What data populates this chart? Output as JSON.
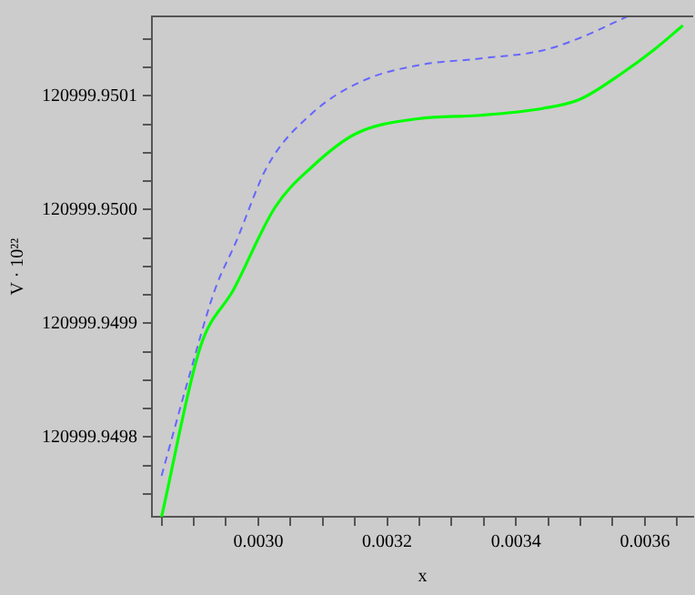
{
  "chart_data": {
    "type": "line",
    "xlabel": "x",
    "ylabel": "V · 10²²",
    "grid": false,
    "legend": false,
    "marker": "none",
    "xlim": [
      0.002835,
      0.003675
    ],
    "xticks": [
      {
        "value": 0.00285,
        "label": null
      },
      {
        "value": 0.0029,
        "label": null
      },
      {
        "value": 0.00295,
        "label": null
      },
      {
        "value": 0.003,
        "label": "0.0030"
      },
      {
        "value": 0.00305,
        "label": null
      },
      {
        "value": 0.0031,
        "label": null
      },
      {
        "value": 0.00315,
        "label": null
      },
      {
        "value": 0.0032,
        "label": "0.0032"
      },
      {
        "value": 0.00325,
        "label": null
      },
      {
        "value": 0.0033,
        "label": null
      },
      {
        "value": 0.00335,
        "label": null
      },
      {
        "value": 0.0034,
        "label": "0.0034"
      },
      {
        "value": 0.00345,
        "label": null
      },
      {
        "value": 0.0035,
        "label": null
      },
      {
        "value": 0.00355,
        "label": null
      },
      {
        "value": 0.0036,
        "label": "0.0036"
      },
      {
        "value": 0.00365,
        "label": null
      }
    ],
    "ylim": [
      120999.94973,
      120999.95017
    ],
    "yticks": [
      {
        "value": 120999.94975,
        "label": null
      },
      {
        "value": 120999.949775,
        "label": null
      },
      120999.9498,
      {
        "value": 120999.949825,
        "label": null
      },
      {
        "value": 120999.94985,
        "label": null
      },
      {
        "value": 120999.949875,
        "label": null
      },
      120999.9499,
      {
        "value": 120999.949925,
        "label": null
      },
      {
        "value": 120999.94995,
        "label": null
      },
      {
        "value": 120999.949975,
        "label": null
      },
      {
        "value": 120999.95,
        "label": "120999.9500"
      },
      {
        "value": 120999.950025,
        "label": null
      },
      {
        "value": 120999.95005,
        "label": null
      },
      {
        "value": 120999.950075,
        "label": null
      },
      120999.9501,
      {
        "value": 120999.950125,
        "label": null
      },
      {
        "value": 120999.95015,
        "label": null
      }
    ],
    "series": [
      {
        "color": "#00ff00",
        "line_style": "solid",
        "x": [
          0.00285,
          0.00291,
          0.002962,
          0.003026,
          0.003084,
          0.003152,
          0.003248,
          0.003345,
          0.003441,
          0.003499,
          0.003567,
          0.003615,
          0.003659
        ],
        "values": [
          120999.94973,
          120999.949879,
          120999.94993,
          120999.950002,
          120999.950038,
          120999.950067,
          120999.95008,
          120999.950083,
          120999.950089,
          120999.950097,
          120999.950121,
          120999.950141,
          120999.950162
        ]
      },
      {
        "color": "#6666ff",
        "line_style": "dashed",
        "x": [
          0.00285,
          0.00289,
          0.002933,
          0.002965,
          0.003014,
          0.003084,
          0.003161,
          0.003248,
          0.003345,
          0.003441,
          0.003499,
          0.003573
        ],
        "values": [
          120999.949766,
          120999.949848,
          120999.94993,
          120999.949971,
          120999.950038,
          120999.950085,
          120999.950113,
          120999.950127,
          120999.950133,
          120999.95014,
          120999.950151,
          120999.95017
        ]
      }
    ]
  }
}
